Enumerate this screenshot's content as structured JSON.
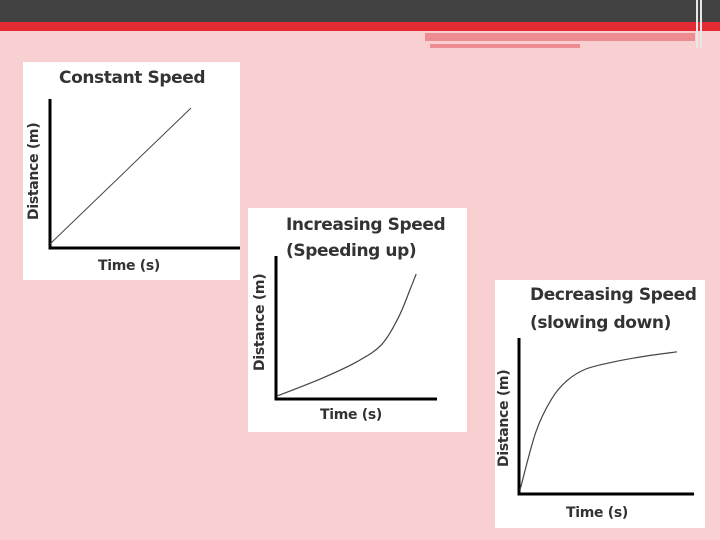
{
  "chart_data": [
    {
      "type": "line",
      "title": "Constant Speed",
      "xlabel": "Time (s)",
      "ylabel": "Distance (m)",
      "series": [
        {
          "x": [
            0,
            1
          ],
          "y": [
            0,
            1
          ]
        }
      ]
    },
    {
      "type": "line",
      "title": "Increasing Speed (Speeding up)",
      "title_lines": [
        "Increasing Speed",
        "(Speeding up)"
      ],
      "xlabel": "Time (s)",
      "ylabel": "Distance (m)",
      "series": [
        {
          "x": [
            0,
            0.3,
            0.55,
            0.72,
            0.84,
            0.92,
            0.96
          ],
          "y": [
            0,
            0.14,
            0.28,
            0.42,
            0.65,
            0.88,
            1.0
          ]
        }
      ]
    },
    {
      "type": "line",
      "title": "Decreasing Speed (slowing down)",
      "title_lines": [
        "Decreasing Speed",
        "(slowing down)"
      ],
      "xlabel": "Time (s)",
      "ylabel": "Distance (m)",
      "series": [
        {
          "x": [
            0,
            0.1,
            0.2,
            0.3,
            0.42,
            0.6,
            0.8,
            1.0
          ],
          "y": [
            0,
            0.4,
            0.63,
            0.76,
            0.84,
            0.89,
            0.93,
            0.96
          ]
        }
      ]
    }
  ]
}
